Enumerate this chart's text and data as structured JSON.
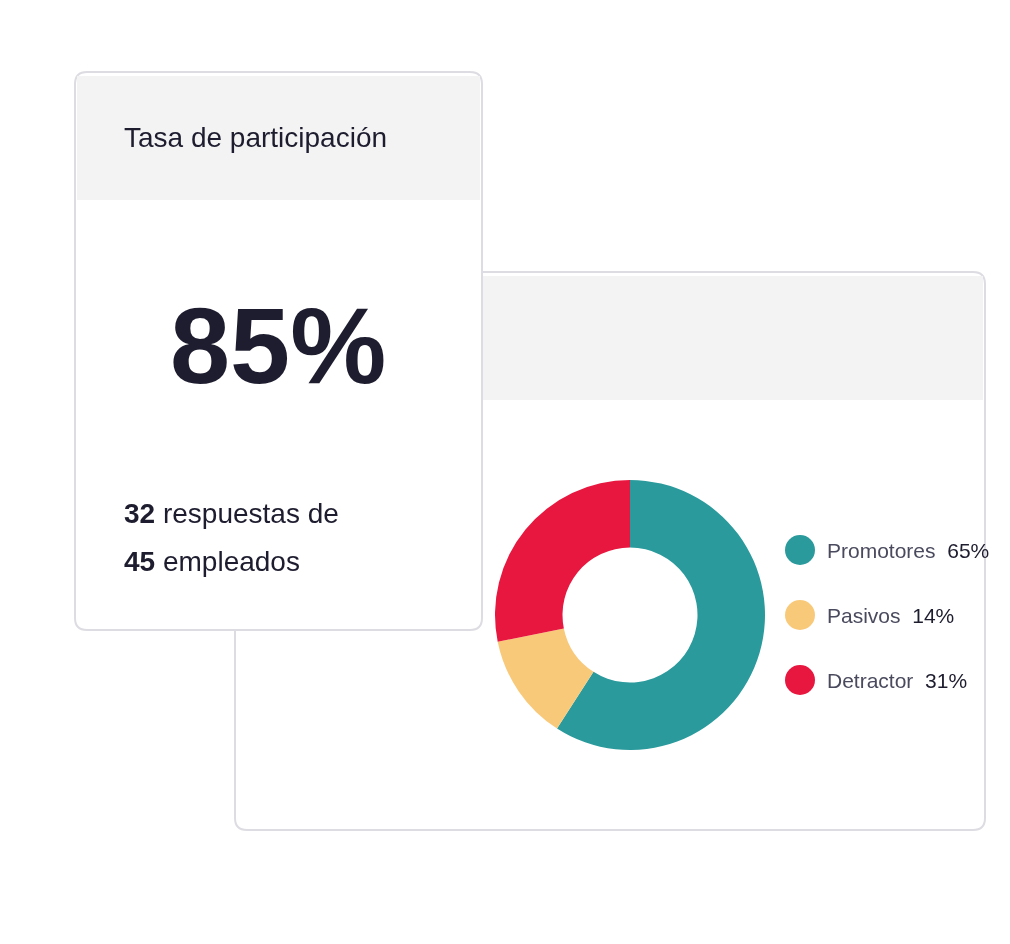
{
  "chart_data": [
    {
      "type": "other",
      "title": "Tasa de participación",
      "annotations": [
        "85%",
        "32 respuestas de",
        "45 empleados"
      ]
    },
    {
      "type": "donut",
      "categories": [
        "Promotores",
        "Pasivos",
        "Detractor"
      ],
      "values": [
        65,
        14,
        31
      ],
      "colors": [
        "#2a9a9c",
        "#f9c97a",
        "#e8173f"
      ],
      "legend": "right",
      "value_labels": [
        "65%",
        "14%",
        "31%"
      ]
    }
  ]
}
